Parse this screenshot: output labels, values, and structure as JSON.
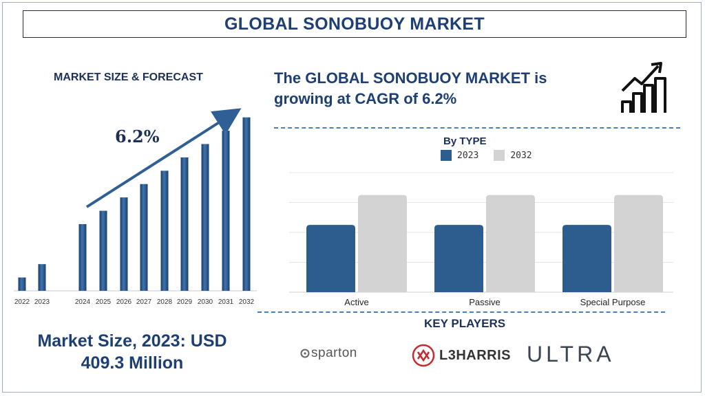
{
  "header": {
    "title": "GLOBAL SONOBUOY MARKET"
  },
  "left_panel": {
    "title": "MARKET SIZE & FORECAST",
    "cagr_label": "6.2%",
    "market_size_line1": "Market Size, 2023: USD",
    "market_size_line2": "409.3 Million"
  },
  "headline": {
    "line1": "The GLOBAL SONOBUOY MARKET is",
    "line2": "growing at CAGR of 6.2%"
  },
  "icons": {
    "growth": "growth-chart-icon",
    "l3harris_mark": "l3harris-logo-icon",
    "sparton_mark": "sparton-logo-icon"
  },
  "colors": {
    "bar_blue": "#2c5d8e",
    "bar_light": "#d3d3d3",
    "title_navy": "#1d3f73",
    "dash_blue": "#4a7fb5"
  },
  "key_players": {
    "title": "KEY PLAYERS",
    "players": [
      "sparton",
      "L3HARRIS",
      "ULTRA"
    ]
  },
  "chart_data": [
    {
      "type": "bar",
      "title": "MARKET SIZE & FORECAST",
      "categories": [
        "2022",
        "2023",
        "2024",
        "2025",
        "2026",
        "2027",
        "2028",
        "2029",
        "2030",
        "2031",
        "2032"
      ],
      "values": [
        1.0,
        2.0,
        5.0,
        6.0,
        7.0,
        8.0,
        9.0,
        10.0,
        11.0,
        12.0,
        13.0
      ],
      "annotation": "6.2%",
      "grid": false,
      "ylim": [
        0,
        13.5
      ]
    },
    {
      "type": "bar",
      "title": "By TYPE",
      "categories": [
        "Active",
        "Passive",
        "Special Purpose"
      ],
      "series": [
        {
          "name": "2023",
          "values": [
            4.5,
            4.5,
            4.5
          ],
          "color": "#2c5d8e"
        },
        {
          "name": "2032",
          "values": [
            6.5,
            6.5,
            6.5
          ],
          "color": "#d3d3d3"
        }
      ],
      "ylim": [
        0,
        8
      ],
      "grid": true,
      "legend": "top"
    }
  ]
}
